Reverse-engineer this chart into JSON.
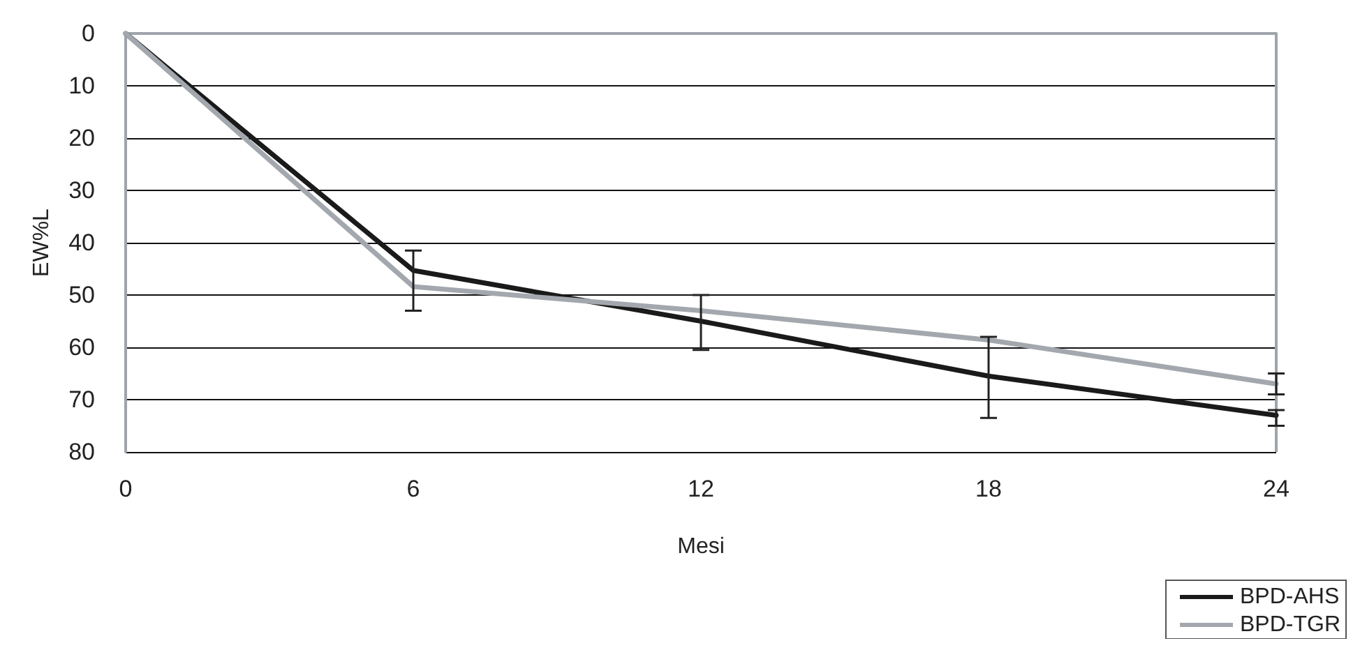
{
  "chart_data": {
    "type": "line",
    "xlabel": "Mesi",
    "ylabel": "EW%L",
    "x": [
      0,
      6,
      12,
      18,
      24
    ],
    "series": [
      {
        "name": "BPD-AHS",
        "color": "#1a1a1a",
        "values": [
          0,
          45.3,
          55,
          65.5,
          73
        ],
        "errors": [
          null,
          [
            41.5,
            53
          ],
          [
            50,
            60.5
          ],
          [
            58,
            73.5
          ],
          [
            72,
            75
          ]
        ]
      },
      {
        "name": "BPD-TGR",
        "color": "#a3a8ae",
        "values": [
          0,
          48.4,
          53,
          58.6,
          67
        ],
        "errors": [
          null,
          null,
          null,
          null,
          [
            65,
            69
          ]
        ]
      }
    ],
    "xlim": [
      0,
      24
    ],
    "xticks": [
      0,
      6,
      12,
      18,
      24
    ],
    "ylim": [
      80,
      0
    ],
    "yticks": [
      0,
      10,
      20,
      30,
      40,
      50,
      60,
      70,
      80
    ],
    "grid": "y",
    "legend": "bottom right",
    "marker": "none",
    "line_style": "solid"
  }
}
